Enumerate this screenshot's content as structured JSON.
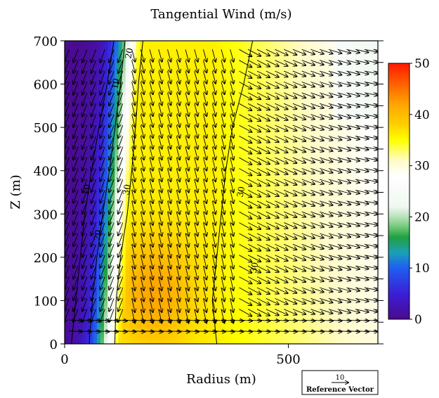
{
  "chart_data": {
    "type": "contour",
    "title": "Tangential Wind (m/s)",
    "xlabel": "Radius (m)",
    "ylabel": "Z (m)",
    "xlim": [
      0,
      700
    ],
    "ylim": [
      0,
      700
    ],
    "x_ticks": [
      {
        "value": 0,
        "label": "0"
      },
      {
        "value": 500,
        "label": "500"
      }
    ],
    "y_ticks": [
      {
        "value": 0,
        "label": "0"
      },
      {
        "value": 100,
        "label": "100"
      },
      {
        "value": 200,
        "label": "200"
      },
      {
        "value": 300,
        "label": "300"
      },
      {
        "value": 400,
        "label": "400"
      },
      {
        "value": 500,
        "label": "500"
      },
      {
        "value": 600,
        "label": "600"
      },
      {
        "value": 700,
        "label": "700"
      }
    ],
    "colorbar": {
      "range": [
        0,
        50
      ],
      "ticks": [
        {
          "value": 0,
          "label": "0"
        },
        {
          "value": 10,
          "label": "10"
        },
        {
          "value": 20,
          "label": "20"
        },
        {
          "value": 30,
          "label": "30"
        },
        {
          "value": 40,
          "label": "40"
        },
        {
          "value": 50,
          "label": "50"
        }
      ],
      "colors": [
        {
          "v": 0,
          "c": "#4b0a8e"
        },
        {
          "v": 5,
          "c": "#3a1fd8"
        },
        {
          "v": 10,
          "c": "#1f5ff0"
        },
        {
          "v": 13,
          "c": "#1aa0b8"
        },
        {
          "v": 16,
          "c": "#20a040"
        },
        {
          "v": 18,
          "c": "#70c878"
        },
        {
          "v": 20,
          "c": "#b8e2bc"
        },
        {
          "v": 22,
          "c": "#f0f8f0"
        },
        {
          "v": 28,
          "c": "#ffffff"
        },
        {
          "v": 31,
          "c": "#fffbc8"
        },
        {
          "v": 35,
          "c": "#ffff00"
        },
        {
          "v": 38,
          "c": "#ffd000"
        },
        {
          "v": 42,
          "c": "#ffa500"
        },
        {
          "v": 46,
          "c": "#ff6000"
        },
        {
          "v": 50,
          "c": "#ff1a00"
        }
      ]
    },
    "contours": [
      {
        "label": "10",
        "points": [
          [
            15,
            0
          ],
          [
            25,
            100
          ],
          [
            35,
            200
          ],
          [
            45,
            300
          ],
          [
            60,
            400
          ],
          [
            80,
            520
          ],
          [
            95,
            600
          ],
          [
            110,
            700
          ]
        ]
      },
      {
        "label": "20",
        "points": [
          [
            55,
            0
          ],
          [
            62,
            100
          ],
          [
            72,
            200
          ],
          [
            85,
            300
          ],
          [
            100,
            400
          ],
          [
            115,
            520
          ],
          [
            125,
            600
          ],
          [
            135,
            700
          ]
        ]
      },
      {
        "label": "30",
        "points": [
          [
            112,
            0
          ],
          [
            115,
            100
          ],
          [
            125,
            200
          ],
          [
            140,
            300
          ],
          [
            150,
            400
          ],
          [
            160,
            520
          ],
          [
            165,
            600
          ],
          [
            175,
            700
          ]
        ]
      },
      {
        "label": "30",
        "points": [
          [
            340,
            0
          ],
          [
            330,
            100
          ],
          [
            340,
            200
          ],
          [
            350,
            300
          ],
          [
            360,
            400
          ],
          [
            375,
            500
          ],
          [
            400,
            600
          ],
          [
            420,
            700
          ]
        ]
      }
    ],
    "contour_labels": [
      {
        "text": "20",
        "x": 150,
        "y": 670
      },
      {
        "text": "10",
        "x": 120,
        "y": 600
      },
      {
        "text": "30",
        "x": 145,
        "y": 355
      },
      {
        "text": "10",
        "x": 55,
        "y": 355
      },
      {
        "text": "20",
        "x": 80,
        "y": 250
      },
      {
        "text": "30",
        "x": 400,
        "y": 350
      },
      {
        "text": "30",
        "x": 430,
        "y": 175
      }
    ],
    "wind_field": {
      "description_free": true,
      "x_step": 20,
      "y_step": 25
    },
    "reference_vector": {
      "value_label": "10",
      "caption": "Reference Vector"
    }
  }
}
